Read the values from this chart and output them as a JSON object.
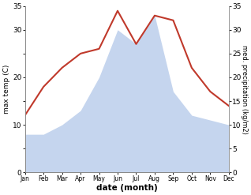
{
  "months": [
    "Jan",
    "Feb",
    "Mar",
    "Apr",
    "May",
    "Jun",
    "Jul",
    "Aug",
    "Sep",
    "Oct",
    "Nov",
    "Dec"
  ],
  "month_positions": [
    1,
    2,
    3,
    4,
    5,
    6,
    7,
    8,
    9,
    10,
    11,
    12
  ],
  "temperature": [
    12,
    18,
    22,
    25,
    26,
    34,
    27,
    33,
    32,
    22,
    17,
    14
  ],
  "precipitation": [
    8,
    8,
    10,
    13,
    20,
    30,
    27,
    33,
    17,
    12,
    11,
    10
  ],
  "temp_color": "#c0392b",
  "precip_color": "#c5d5ee",
  "background_color": "#ffffff",
  "ylabel_left": "max temp (C)",
  "ylabel_right": "med. precipitation (kg/m2)",
  "xlabel": "date (month)",
  "ylim": [
    0,
    35
  ],
  "yticks_left": [
    0,
    5,
    10,
    15,
    20,
    25,
    30,
    35
  ],
  "ytick_labels_left": [
    "0",
    "",
    "10",
    "",
    "20",
    "",
    "30",
    "35"
  ],
  "yticks_right": [
    0,
    5,
    10,
    15,
    20,
    25,
    30,
    35
  ],
  "ytick_labels_right": [
    "0",
    "5",
    "10",
    "15",
    "20",
    "25",
    "30",
    "35"
  ],
  "temp_linewidth": 1.5,
  "axis_color": "#888888"
}
